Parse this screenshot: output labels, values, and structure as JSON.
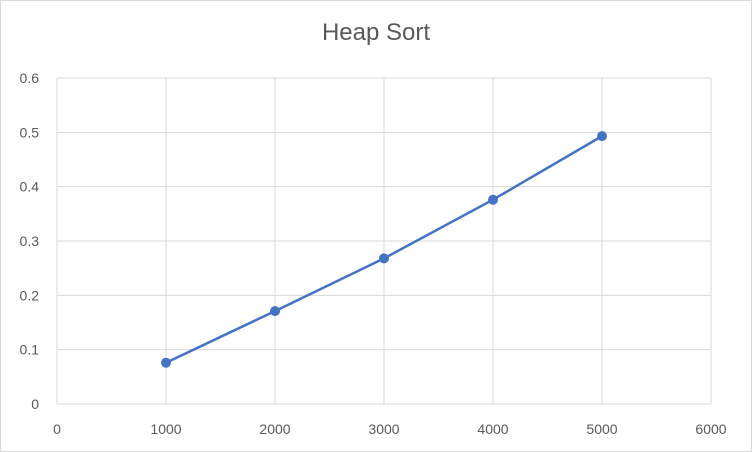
{
  "chart_data": {
    "type": "scatter",
    "title": "Heap Sort",
    "xlabel": "",
    "ylabel": "",
    "xlim": [
      0,
      6000
    ],
    "ylim": [
      0,
      0.6
    ],
    "xticks": [
      0,
      1000,
      2000,
      3000,
      4000,
      5000,
      6000
    ],
    "yticks": [
      0,
      0.1,
      0.2,
      0.3,
      0.4,
      0.5,
      0.6
    ],
    "xtick_labels": [
      "0",
      "1000",
      "2000",
      "3000",
      "4000",
      "5000",
      "6000"
    ],
    "ytick_labels": [
      "0",
      "0.1",
      "0.2",
      "0.3",
      "0.4",
      "0.5",
      "0.6"
    ],
    "grid": true,
    "legend": "none",
    "series": [
      {
        "color": "#4472c4",
        "lines": true,
        "markers": true,
        "x": [
          1000,
          2000,
          3000,
          4000,
          5000
        ],
        "y": [
          0.076,
          0.171,
          0.268,
          0.376,
          0.493
        ]
      }
    ]
  }
}
